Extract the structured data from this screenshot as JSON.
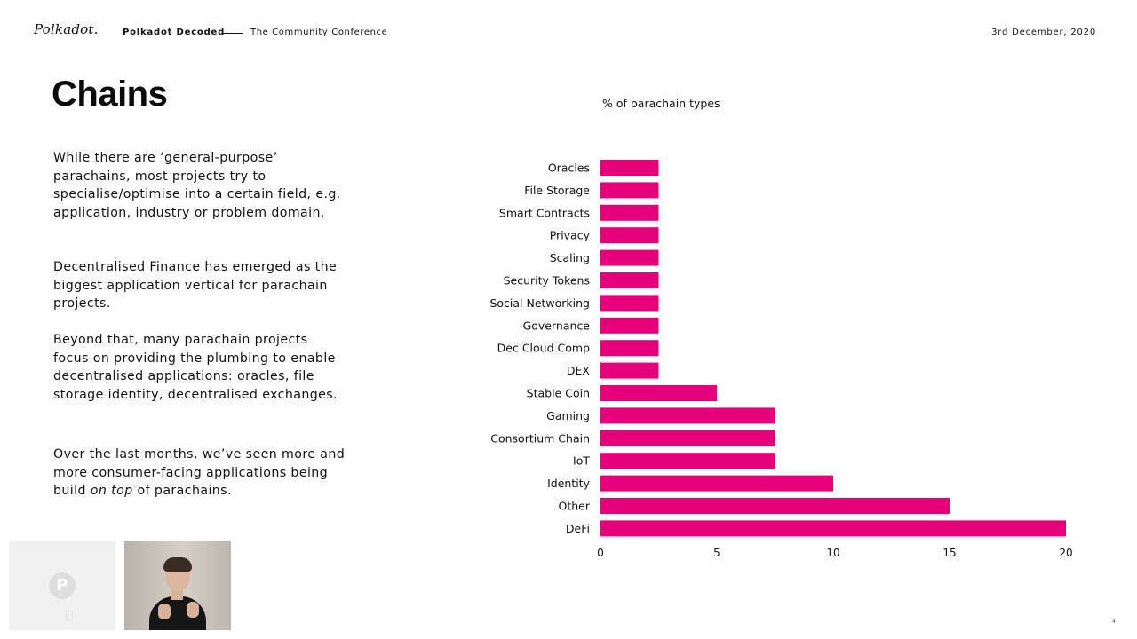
{
  "header": {
    "logo_text": "Polkadot.",
    "deck_title": "Polkadot Decoded",
    "deck_subtitle": "The Community Conference",
    "date": "3rd December, 2020"
  },
  "slide": {
    "title": "Chains",
    "paragraphs": {
      "p1": "While there are ‘general-purpose’ parachains, most projects try to specialise/optimise into a certain field, e.g. application, industry or problem domain.",
      "p2": "Decentralised Finance has emerged as the biggest application vertical for parachain projects.",
      "p3": "Beyond that, many parachain projects focus on providing the plumbing to enable decentralised applications: oracles, file storage identity, decentralised exchanges.",
      "p4_before": "Over the last months, we’ve seen more and more consumer-facing applications being build ",
      "p4_em": "on top",
      "p4_after": " of parachains."
    },
    "page_number": "4"
  },
  "video": {
    "tile_logo_letter": "P",
    "icons": [
      "polkadot-logo-icon",
      "mic-muted-icon",
      "presenter-video"
    ]
  },
  "colors": {
    "bar": "#e6007a",
    "text": "#111111"
  },
  "chart_data": {
    "type": "bar",
    "orientation": "horizontal",
    "title": "% of parachain types",
    "xlabel": "",
    "ylabel": "",
    "categories": [
      "Oracles",
      "File Storage",
      "Smart Contracts",
      "Privacy",
      "Scaling",
      "Security Tokens",
      "Social Networking",
      "Governance",
      "Dec Cloud Comp",
      "DEX",
      "Stable Coin",
      "Gaming",
      "Consortium Chain",
      "IoT",
      "Identity",
      "Other",
      "DeFi"
    ],
    "values": [
      2.5,
      2.5,
      2.5,
      2.5,
      2.5,
      2.5,
      2.5,
      2.5,
      2.5,
      2.5,
      5,
      7.5,
      7.5,
      7.5,
      10,
      15,
      20
    ],
    "xlim": [
      0,
      20
    ],
    "xticks": [
      0,
      5,
      10,
      15,
      20
    ],
    "grid": false,
    "legend": "none"
  }
}
